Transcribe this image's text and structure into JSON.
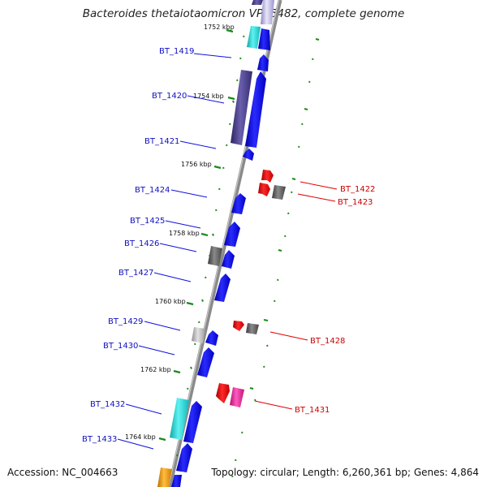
{
  "title": "Bacteroides thetaiotaomicron VPI-5482, complete genome",
  "footer": {
    "accession": "Accession: NC_004663",
    "summary": "Topology: circular; Length: 6,260,361 bp; Genes: 4,864"
  },
  "colors": {
    "forward": "#1010e0",
    "reverse": "#e00000",
    "cyan": "#20d8d8",
    "darkslate": "#4a3f86",
    "gray": "#666666",
    "lightgray": "#bbbbbb",
    "magenta": "#ee2299",
    "orange": "#f59a00",
    "tick": "#1a8a1a",
    "backbone": "#8a8a8a",
    "label_forward": "#1010c0",
    "label_reverse": "#cc0000"
  },
  "kbp_markers": [
    "1752 kbp",
    "1754 kbp",
    "1756 kbp",
    "1758 kbp",
    "1760 kbp",
    "1762 kbp",
    "1764 kbp"
  ],
  "forward_gene_labels": [
    "BT_1419",
    "BT_1420",
    "BT_1421",
    "BT_1424",
    "BT_1425",
    "BT_1426",
    "BT_1427",
    "BT_1429",
    "BT_1430",
    "BT_1432",
    "BT_1433"
  ],
  "reverse_gene_labels": [
    "BT_1422",
    "BT_1423",
    "BT_1428",
    "BT_1431"
  ]
}
